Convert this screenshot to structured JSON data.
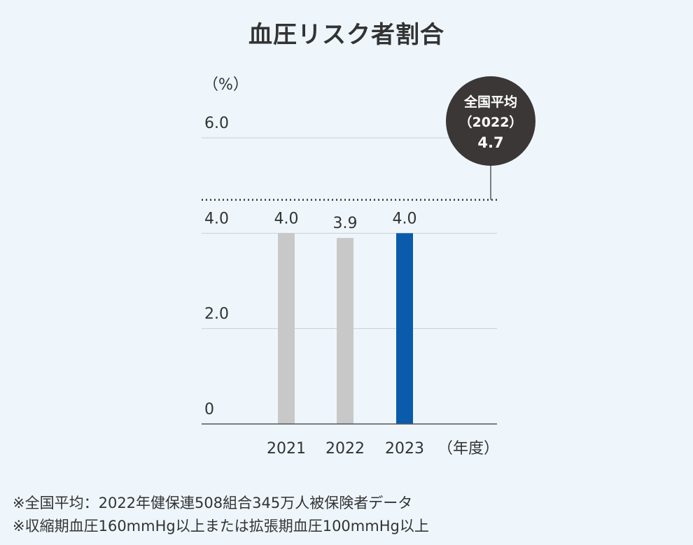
{
  "chart_data": {
    "type": "bar",
    "title": "血圧リスク者割合",
    "ylabel": "（%）",
    "xunit": "（年度）",
    "categories": [
      "2021",
      "2022",
      "2023"
    ],
    "values": [
      4.0,
      3.9,
      4.0
    ],
    "value_labels": [
      "4.0",
      "3.9",
      "4.0"
    ],
    "bar_colors": [
      "#c8c8c8",
      "#c8c8c8",
      "#0a5bab"
    ],
    "ylim": [
      0,
      6.0
    ],
    "yticks": [
      {
        "value": 0,
        "label": "0"
      },
      {
        "value": 2.0,
        "label": "2.0"
      },
      {
        "value": 4.0,
        "label": "4.0"
      },
      {
        "value": 6.0,
        "label": "6.0"
      }
    ],
    "reference": {
      "value": 4.7,
      "line1": "全国平均",
      "line2": "（2022）",
      "line3": "4.7",
      "color": "#3b3737"
    },
    "grid": true
  },
  "notes": [
    "※全国平均：2022年健保連508組合345万人被保険者データ",
    "※収縮期血圧160mmHg以上または拡張期血圧100mmHg以上"
  ]
}
